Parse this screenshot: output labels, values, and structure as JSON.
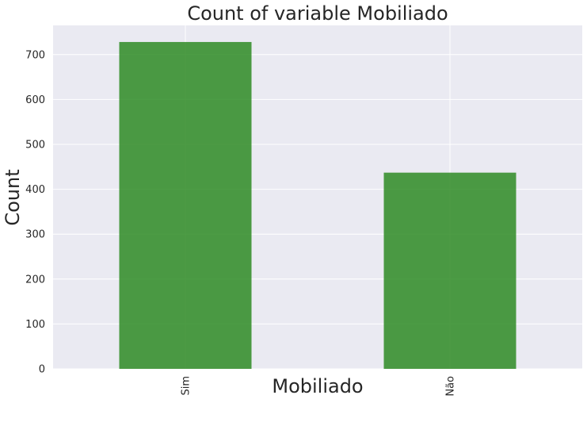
{
  "chart_data": {
    "type": "bar",
    "title": "Count of variable Mobiliado",
    "xlabel": "Mobiliado",
    "ylabel": "Count",
    "categories": [
      "Sim",
      "Não"
    ],
    "values": [
      728,
      437
    ],
    "ylim": [
      0,
      765
    ],
    "yticks": [
      0,
      100,
      200,
      300,
      400,
      500,
      600,
      700
    ],
    "grid": true,
    "legend": "none",
    "colors": {
      "bar": "#2e8b25",
      "plot_background": "#eaeaf2",
      "grid": "#ffffff",
      "text": "#262626"
    }
  }
}
